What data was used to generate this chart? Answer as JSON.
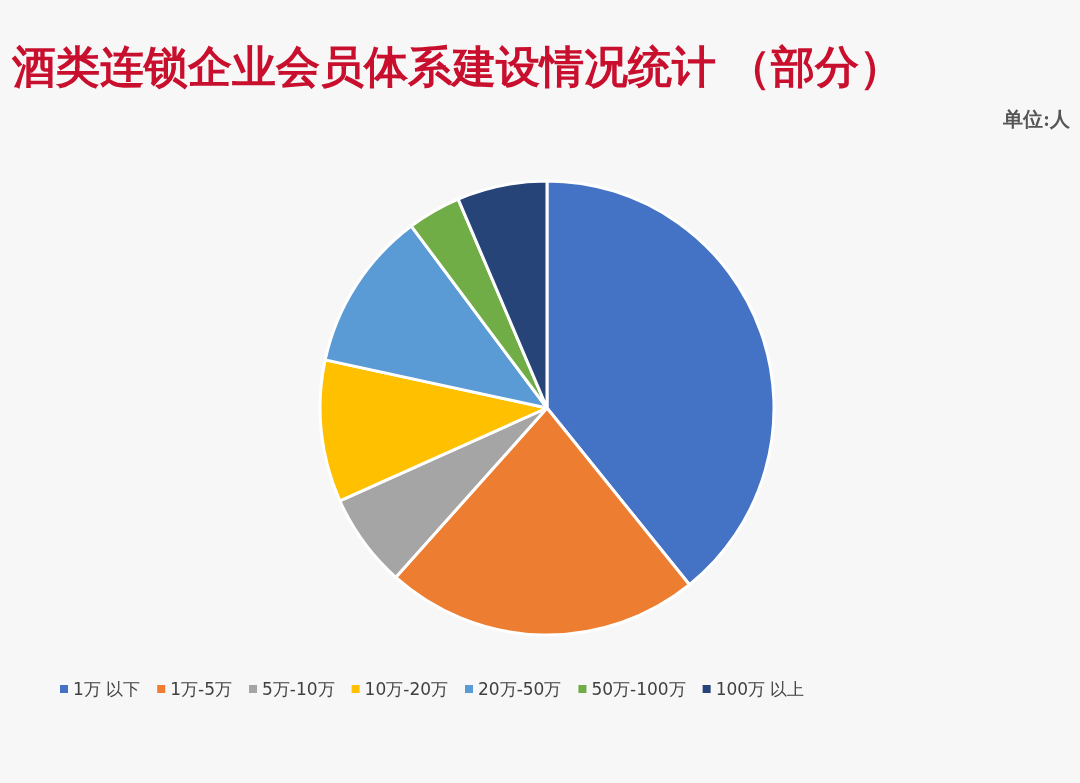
{
  "chart_data": {
    "type": "pie",
    "title": "酒类连锁企业会员体系建设情况统计 （部分）",
    "annotations": [
      "单位:人"
    ],
    "categories": [
      "1万 以下",
      "1万-5万",
      "5万-10万",
      "10万-20万",
      "20万-50万",
      "50万-100万",
      "100万 以上"
    ],
    "values": [
      39.2,
      22.4,
      6.7,
      10.1,
      11.4,
      3.8,
      6.4
    ],
    "colors": [
      "#4472c4",
      "#ed7d31",
      "#a5a5a5",
      "#ffc000",
      "#5b9bd5",
      "#70ad47",
      "#264478"
    ],
    "legend": "bottom"
  }
}
